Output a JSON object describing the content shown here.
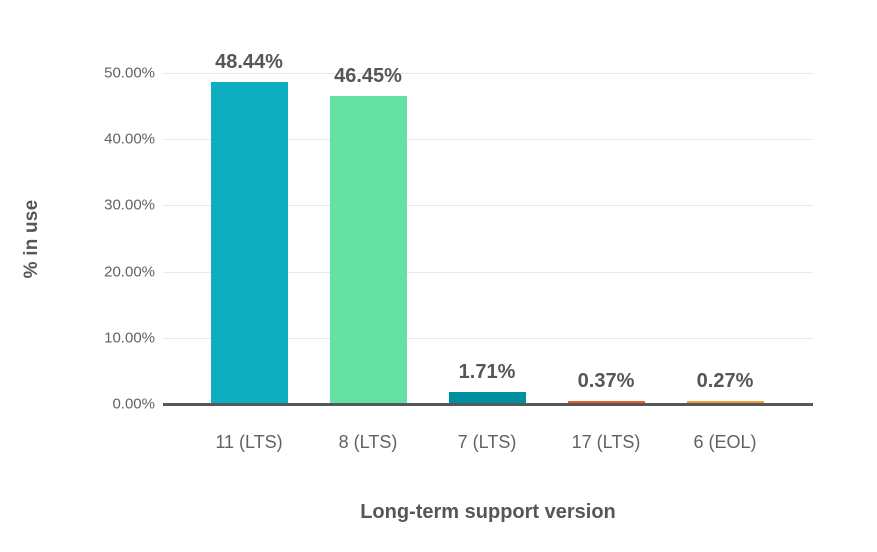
{
  "chart_data": {
    "type": "bar",
    "title": "",
    "xlabel": "Long-term support version",
    "ylabel": "% in use",
    "categories": [
      "11 (LTS)",
      "8 (LTS)",
      "7 (LTS)",
      "17 (LTS)",
      "6 (EOL)"
    ],
    "values": [
      48.44,
      46.45,
      1.71,
      0.37,
      0.27
    ],
    "value_labels": [
      "48.44%",
      "46.45%",
      "1.71%",
      "0.37%",
      "0.27%"
    ],
    "bar_colors": [
      "#0daebf",
      "#65e1a5",
      "#008f9e",
      "#ed5c23",
      "#f0a02e"
    ],
    "ylim": [
      0,
      50
    ],
    "yticks": [
      0,
      10,
      20,
      30,
      40,
      50
    ],
    "ytick_labels": [
      "0.00%",
      "10.00%",
      "20.00%",
      "30.00%",
      "40.00%",
      "50.00%"
    ],
    "grid": "horizontal-on",
    "legend": "none",
    "colors": {
      "gridline": "#e8e8e8",
      "axis_line": "#55585b",
      "title_text": "#53575a",
      "tick_text": "#5d6367",
      "background": "#ffffff"
    }
  }
}
